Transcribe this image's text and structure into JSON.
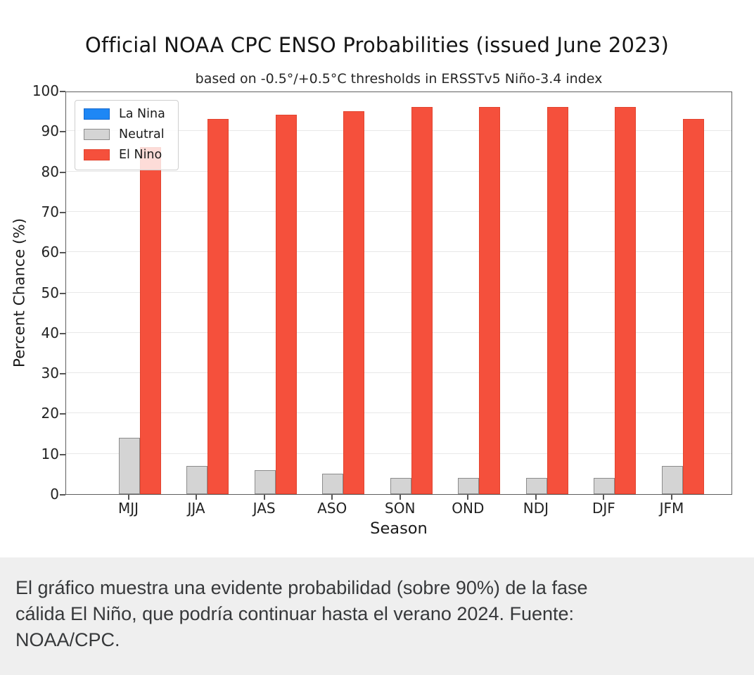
{
  "chart": {
    "title": "Official NOAA CPC ENSO Probabilities (issued June 2023)",
    "subtitle": "based on -0.5°/+0.5°C thresholds in ERSSTv5 Niño-3.4 index"
  },
  "chart_data": {
    "type": "bar",
    "title": "Official NOAA CPC ENSO Probabilities (issued June 2023)",
    "subtitle": "based on -0.5°/+0.5°C thresholds in ERSSTv5 Niño-3.4 index",
    "xlabel": "Season",
    "ylabel": "Percent Chance (%)",
    "ylim": [
      0,
      100
    ],
    "yticks": [
      0,
      10,
      20,
      30,
      40,
      50,
      60,
      70,
      80,
      90,
      100
    ],
    "grid": true,
    "legend_position": "upper-left",
    "categories": [
      "MJJ",
      "JJA",
      "JAS",
      "ASO",
      "SON",
      "OND",
      "NDJ",
      "DJF",
      "JFM"
    ],
    "series": [
      {
        "name": "La Nina",
        "color": "#1E87F5",
        "edge": "#1668CC",
        "values": [
          0,
          0,
          0,
          0,
          0,
          0,
          0,
          0,
          0
        ]
      },
      {
        "name": "Neutral",
        "color": "#D4D4D4",
        "edge": "#8C8C8C",
        "values": [
          14,
          7,
          6,
          5,
          4,
          4,
          4,
          4,
          7
        ]
      },
      {
        "name": "El Nino",
        "color": "#F5503C",
        "edge": "#E2442F",
        "values": [
          86,
          93,
          94,
          95,
          96,
          96,
          96,
          96,
          93
        ]
      }
    ]
  },
  "caption": {
    "lines": [
      "El gráfico muestra una evidente probabilidad (sobre 90%) de la fase",
      "cálida El Niño, que podría continuar hasta el verano 2024. Fuente:",
      "NOAA/CPC."
    ],
    "full_text": "El gráfico muestra una evidente probabilidad (sobre 90%) de la fase cálida El Niño, que podría continuar hasta el verano 2024. Fuente: NOAA/CPC."
  },
  "colors": {
    "la_nina": "#1E87F5",
    "neutral": "#D4D4D4",
    "el_nino": "#F5503C",
    "caption_bg": "#EFEFEF",
    "gridline": "#E8E8E8"
  }
}
